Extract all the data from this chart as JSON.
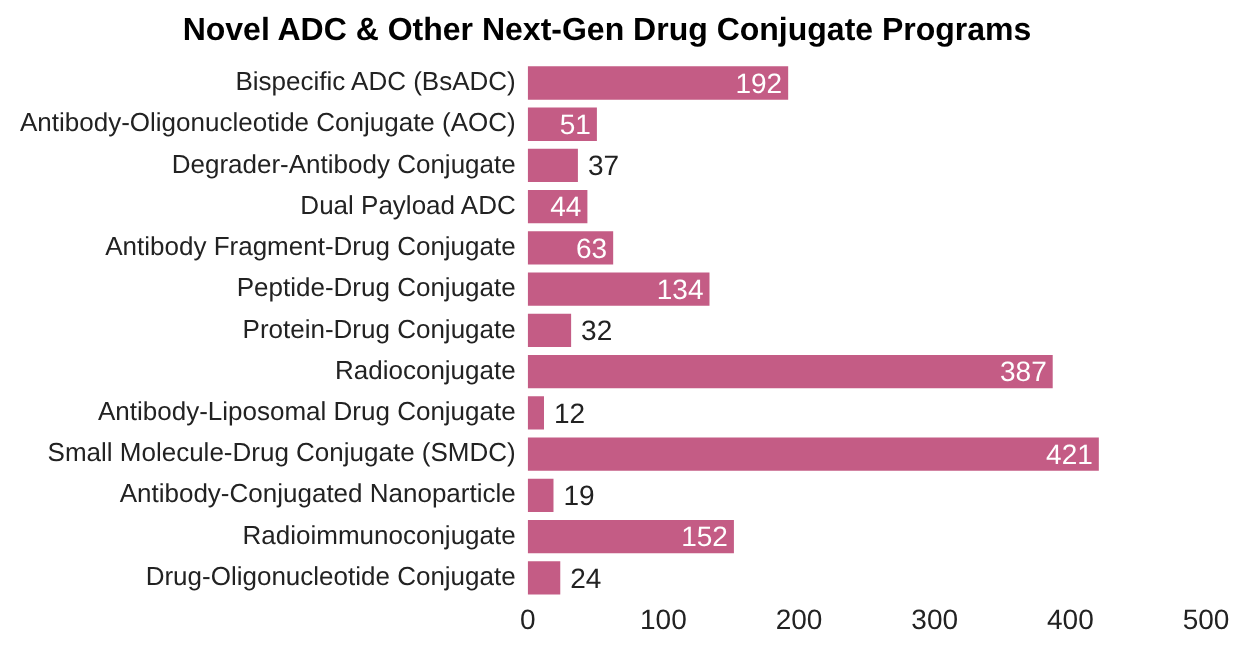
{
  "chart_data": {
    "type": "bar",
    "orientation": "horizontal",
    "title": "Novel ADC & Other Next-Gen Drug Conjugate Programs",
    "categories": [
      "Bispecific ADC (BsADC)",
      "Antibody-Oligonucleotide Conjugate (AOC)",
      "Degrader-Antibody Conjugate",
      "Dual Payload ADC",
      "Antibody Fragment-Drug Conjugate",
      "Peptide-Drug Conjugate",
      "Protein-Drug Conjugate",
      "Radioconjugate",
      "Antibody-Liposomal Drug Conjugate",
      "Small Molecule-Drug Conjugate (SMDC)",
      "Antibody-Conjugated Nanoparticle",
      "Radioimmunoconjugate",
      "Drug-Oligonucleotide Conjugate"
    ],
    "values": [
      192,
      51,
      37,
      44,
      63,
      134,
      32,
      387,
      12,
      421,
      19,
      152,
      24
    ],
    "color": "#c45c85",
    "xlim": [
      0,
      500
    ],
    "xticks": [
      0,
      100,
      200,
      300,
      400,
      500
    ],
    "data_labels": true,
    "grid": false,
    "legend": false
  }
}
